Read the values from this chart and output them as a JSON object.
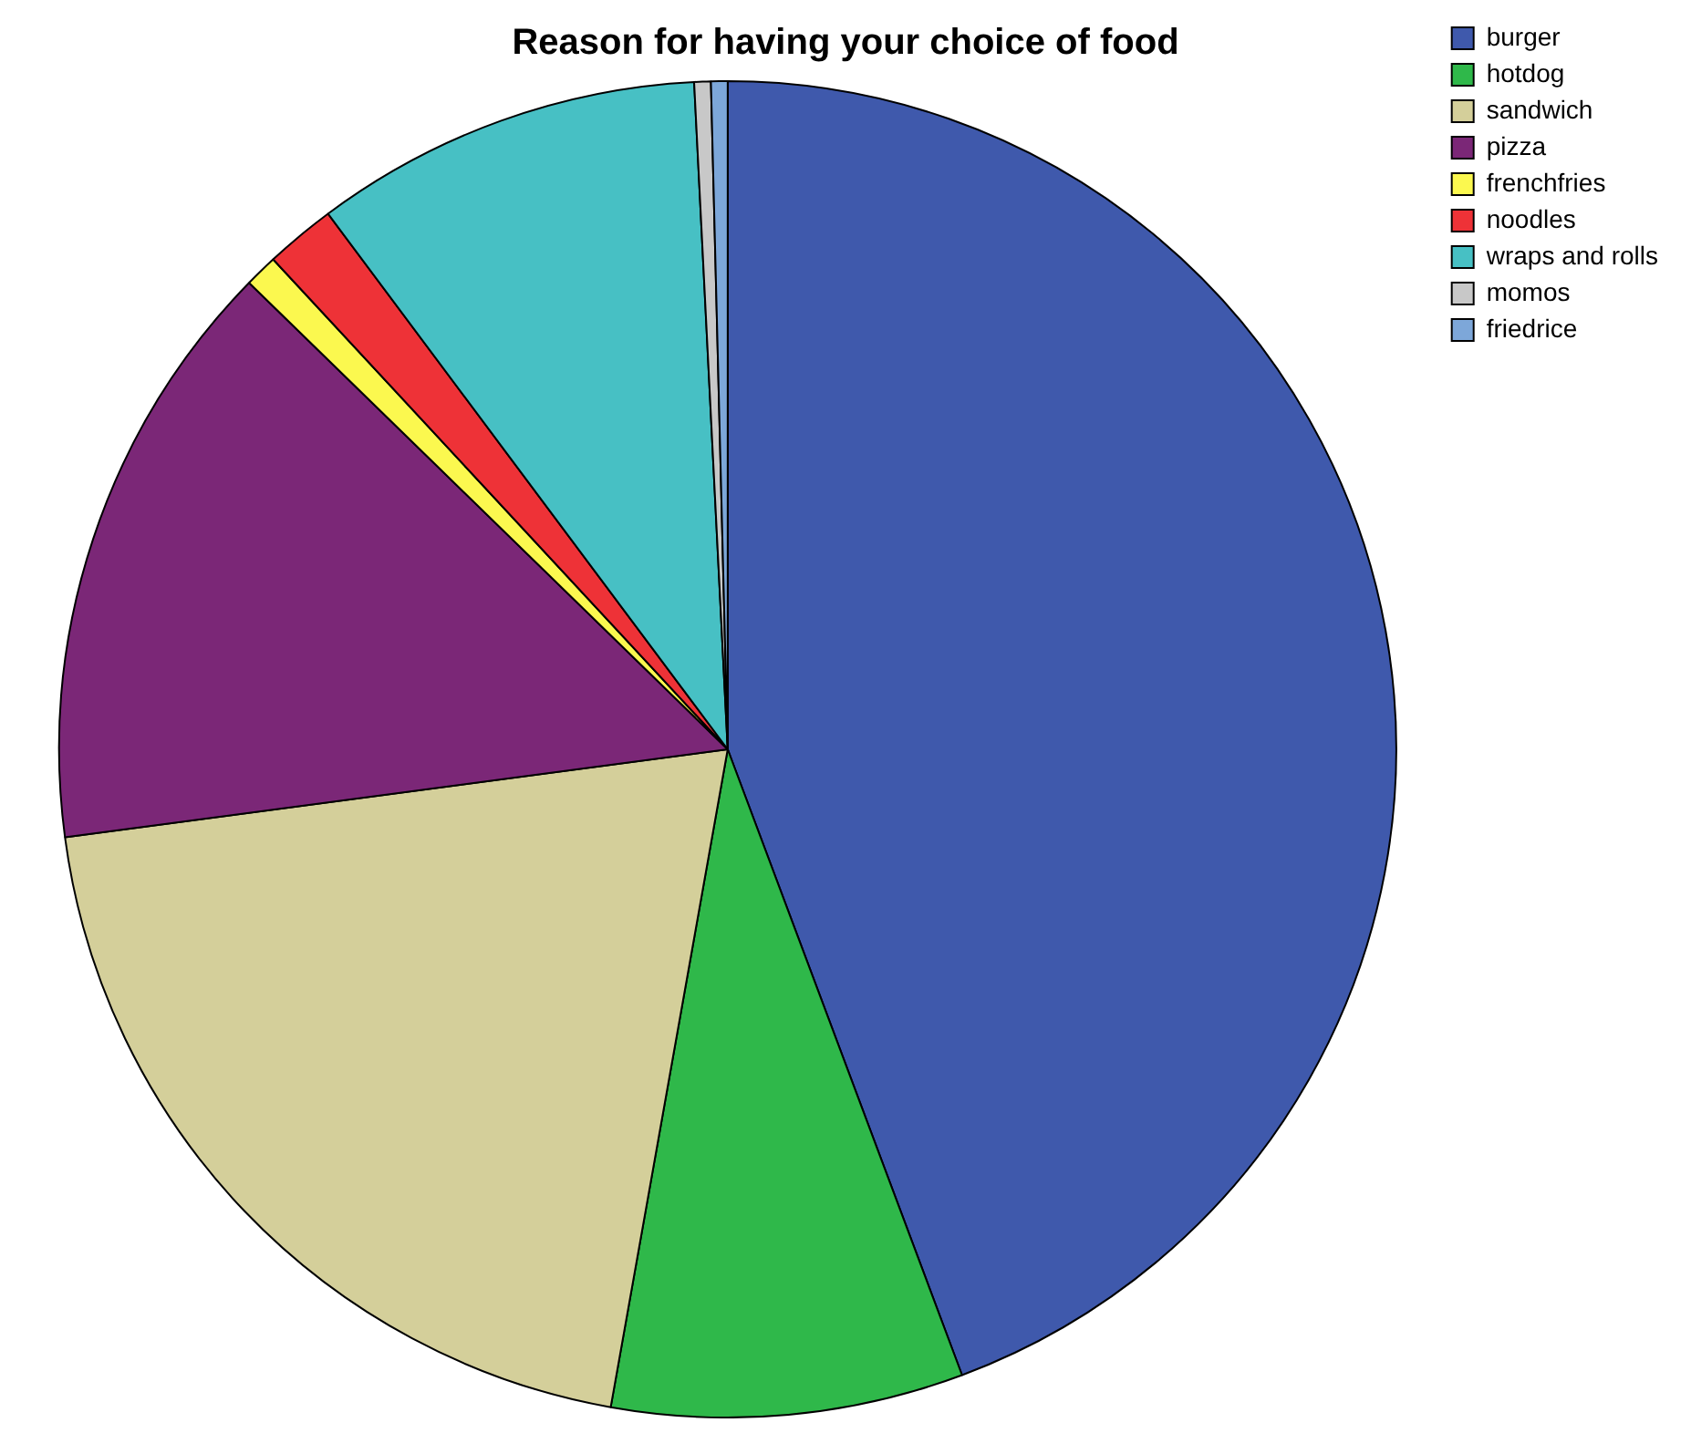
{
  "chart_data": {
    "type": "pie",
    "title": "Reason for having your choice of food",
    "categories": [
      "burger",
      "hotdog",
      "sandwich",
      "pizza",
      "frenchfries",
      "noodles",
      "wraps and rolls",
      "momos",
      "friedrice"
    ],
    "values": [
      44.3,
      8.5,
      20.1,
      14.4,
      0.8,
      1.7,
      9.4,
      0.4,
      0.4
    ],
    "colors": [
      "#3f59ac",
      "#2fb84a",
      "#d4cf9a",
      "#7b2777",
      "#fbf84f",
      "#ee3237",
      "#47c0c4",
      "#c8c8c8",
      "#7da7d9"
    ],
    "legend": "top right"
  }
}
